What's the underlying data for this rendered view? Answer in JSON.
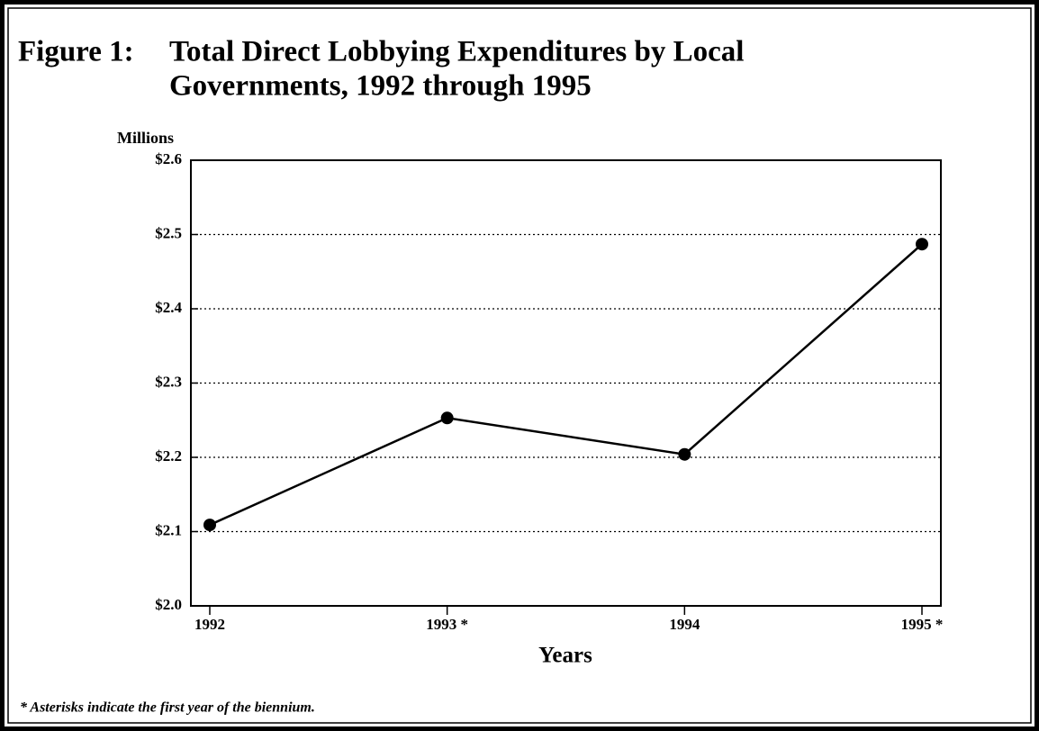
{
  "chart_data": {
    "type": "line",
    "figure_label": "Figure 1:",
    "title_lines": [
      "Total Direct Lobbying Expenditures by Local",
      "Governments, 1992 through 1995"
    ],
    "ylabel": "Millions",
    "xlabel": "Years",
    "note": "* Asterisks indicate the first year of the biennium.",
    "categories": [
      "1992",
      "1993 *",
      "1994",
      "1995 *"
    ],
    "series": [
      {
        "name": "Total direct lobbying expenditures",
        "color": "#000000",
        "values": [
          2.109,
          2.253,
          2.204,
          2.487
        ]
      }
    ],
    "ylim": [
      2.0,
      2.6
    ],
    "yticks": [
      {
        "value": 2.0,
        "label": "$2.0"
      },
      {
        "value": 2.1,
        "label": "$2.1"
      },
      {
        "value": 2.2,
        "label": "$2.2"
      },
      {
        "value": 2.3,
        "label": "$2.3"
      },
      {
        "value": 2.4,
        "label": "$2.4"
      },
      {
        "value": 2.5,
        "label": "$2.5"
      },
      {
        "value": 2.6,
        "label": "$2.6"
      }
    ],
    "grid": true
  }
}
